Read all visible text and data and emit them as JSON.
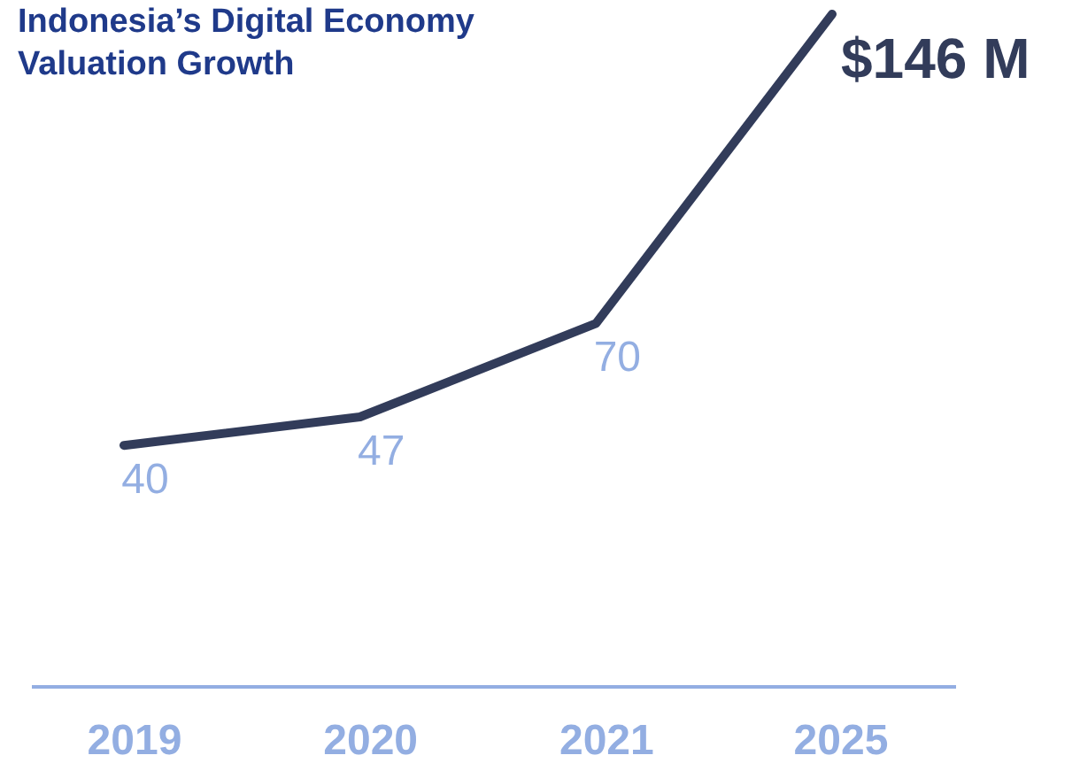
{
  "chart_data": {
    "type": "line",
    "title": "Indonesia’s Digital Economy Valuation Growth",
    "categories": [
      "2019",
      "2020",
      "2021",
      "2025"
    ],
    "series": [
      {
        "color": "#323c5a",
        "values": [
          40,
          47,
          70,
          146
        ],
        "value_labels": [
          "40",
          "47",
          "70",
          "$146 M"
        ]
      }
    ],
    "tick_labels": "x",
    "marker": "none",
    "line_style": "solid"
  }
}
